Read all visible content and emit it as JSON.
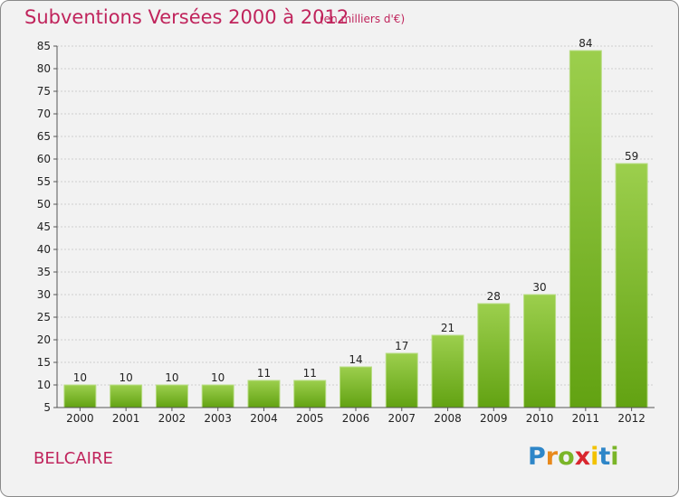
{
  "chart_data": {
    "type": "bar",
    "title": "Subventions Versées 2000 à 2012",
    "units": "(en milliers d'€)",
    "categories": [
      "2000",
      "2001",
      "2002",
      "2003",
      "2004",
      "2005",
      "2006",
      "2007",
      "2008",
      "2009",
      "2010",
      "2011",
      "2012"
    ],
    "values": [
      10,
      10,
      10,
      10,
      11,
      11,
      14,
      17,
      21,
      28,
      30,
      84,
      59
    ],
    "ylim": [
      5,
      85
    ],
    "yticks": [
      5,
      10,
      15,
      20,
      25,
      30,
      35,
      40,
      45,
      50,
      55,
      60,
      65,
      70,
      75,
      80,
      85
    ],
    "grid": true,
    "bar_color": "#7ab52a"
  },
  "place": "BELCAIRE",
  "logo": "Proxiti"
}
